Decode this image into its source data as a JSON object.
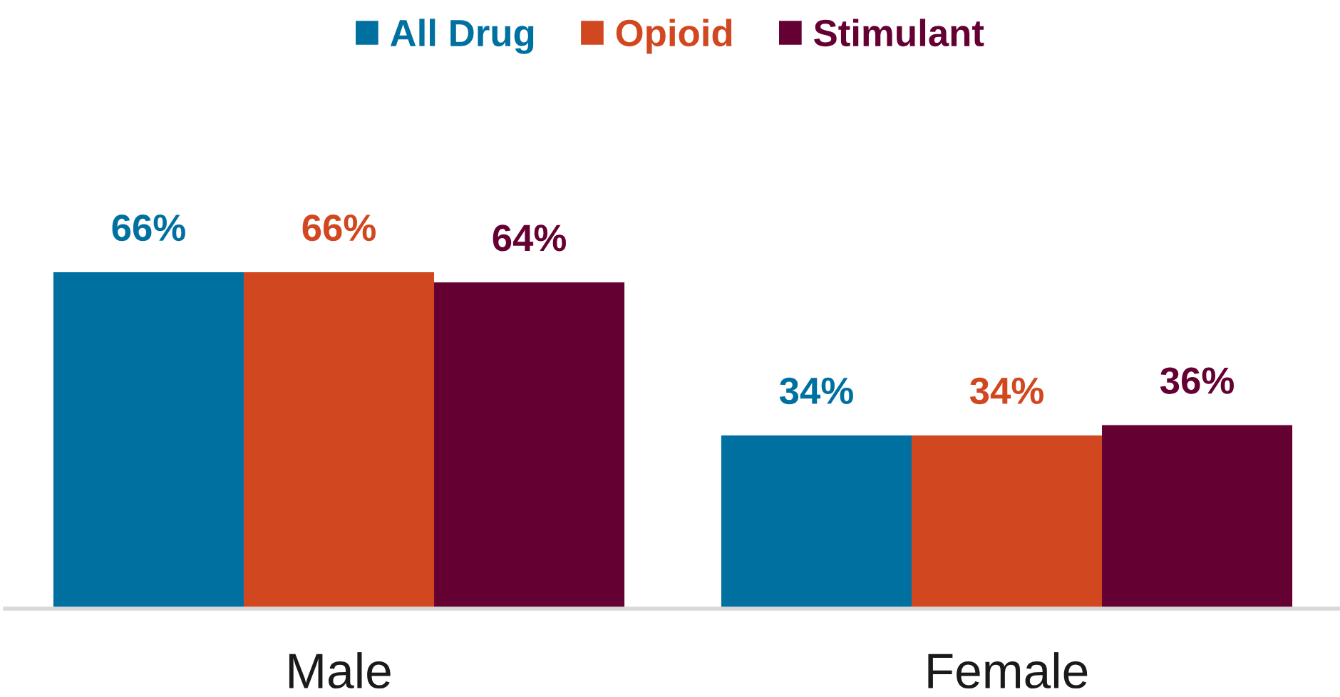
{
  "chart_data": {
    "type": "bar",
    "categories": [
      "Male",
      "Female"
    ],
    "series": [
      {
        "name": "All Drug",
        "color": "#0070a0",
        "values": [
          66,
          34
        ],
        "value_labels": [
          "66%",
          "34%"
        ]
      },
      {
        "name": "Opioid",
        "color": "#d14720",
        "values": [
          66,
          34
        ],
        "value_labels": [
          "66%",
          "34%"
        ]
      },
      {
        "name": "Stimulant",
        "color": "#650033",
        "values": [
          64,
          36
        ],
        "value_labels": [
          "64%",
          "36%"
        ]
      }
    ],
    "legend": "top"
  }
}
